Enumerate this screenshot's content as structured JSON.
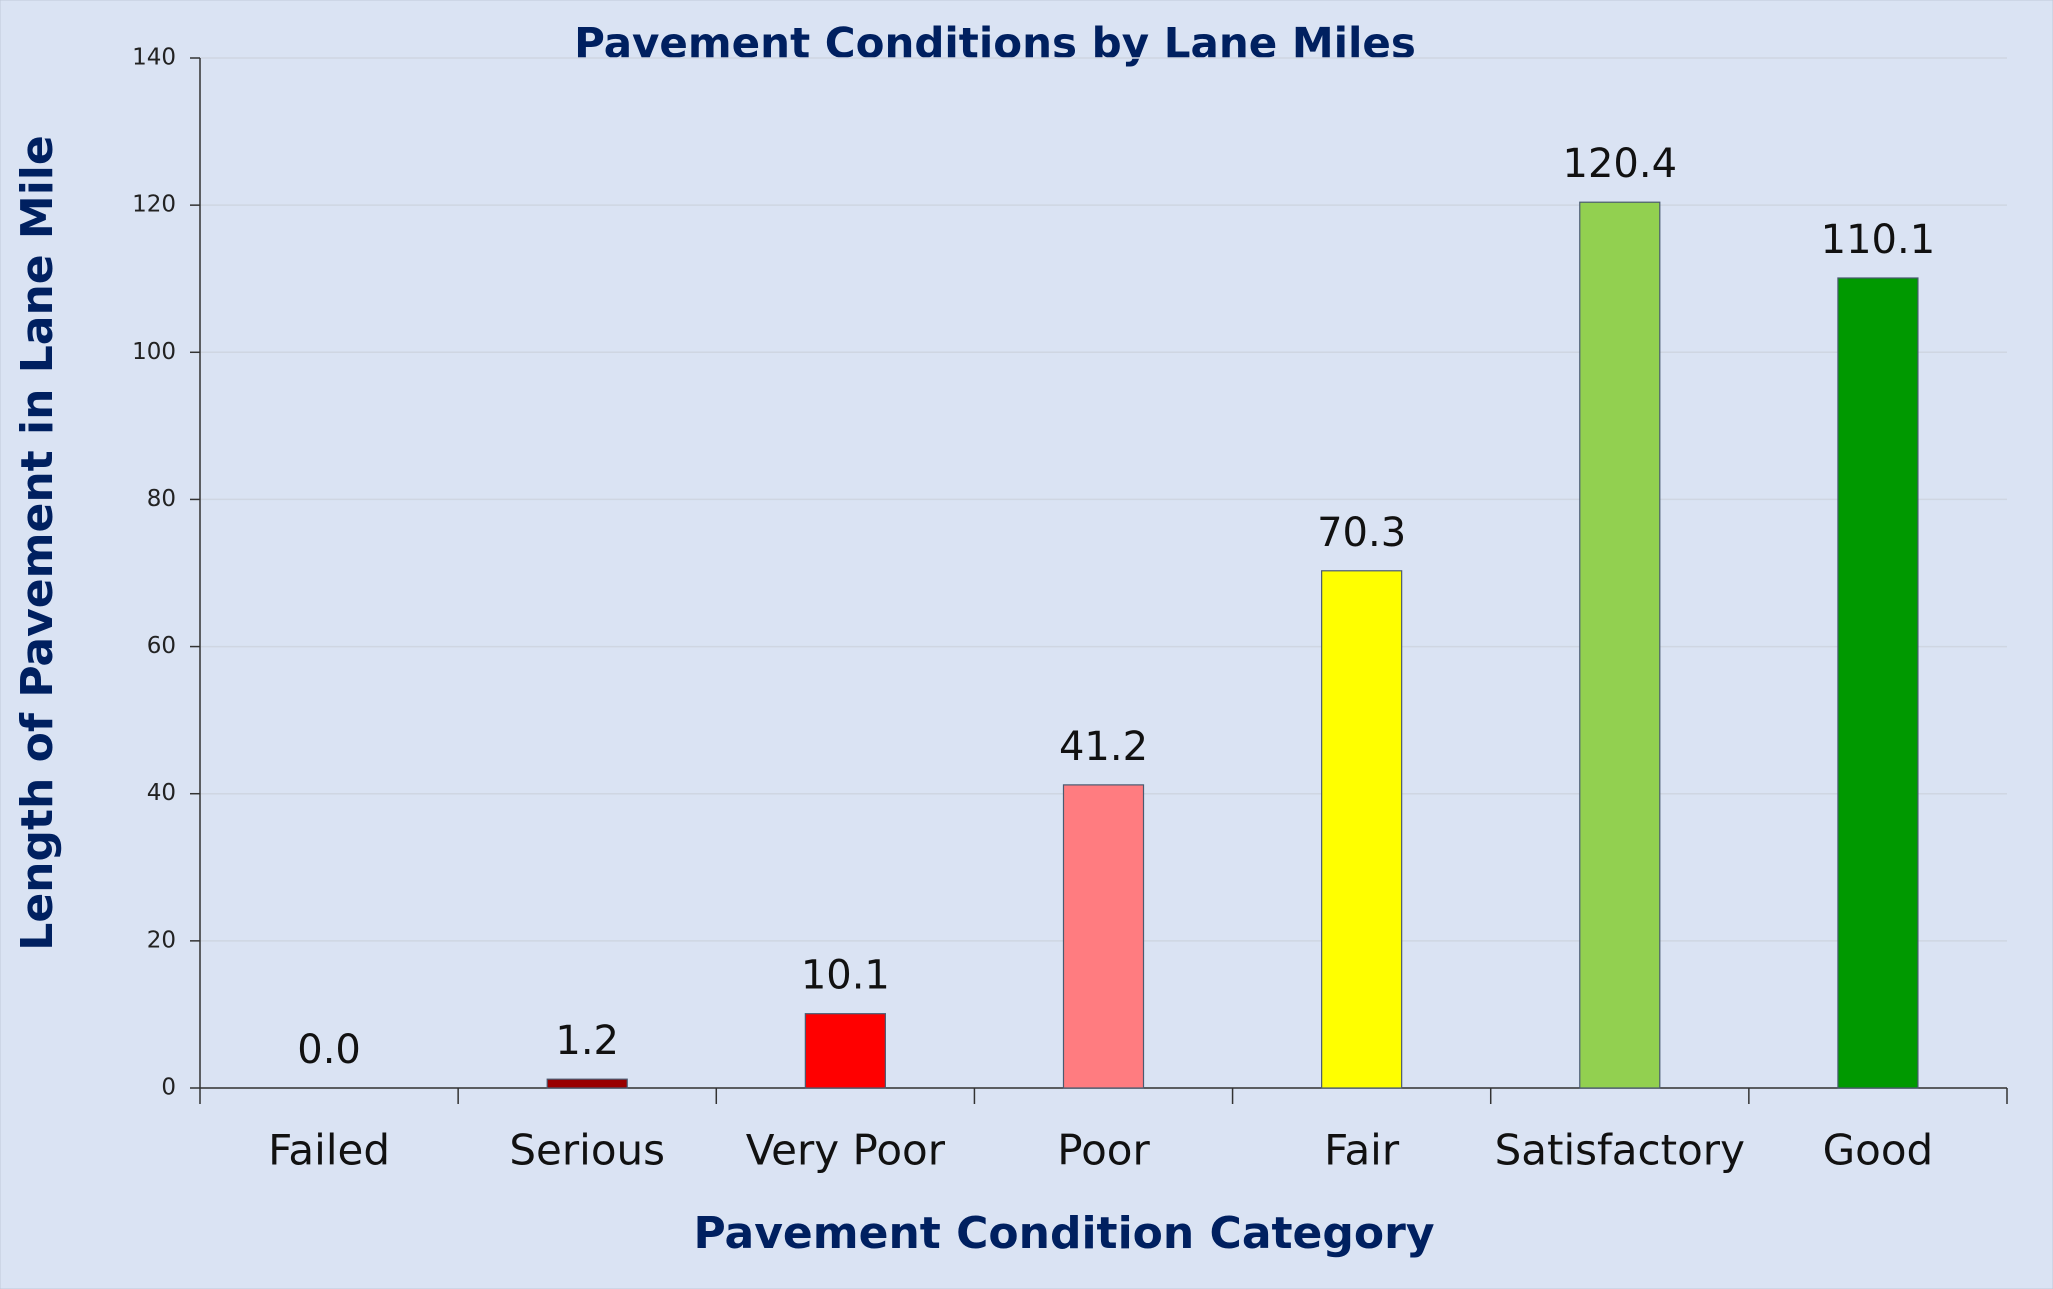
{
  "chart_data": {
    "type": "bar",
    "title": "Pavement Conditions by Lane Miles",
    "xlabel": "Pavement Condition Category",
    "ylabel": "Length of Pavement in Lane Mile",
    "categories": [
      "Failed",
      "Serious",
      "Very Poor",
      "Poor",
      "Fair",
      "Satisfactory",
      "Good"
    ],
    "values": [
      0,
      1.2,
      10.1,
      41.2,
      70.3,
      120.4,
      110.1
    ],
    "value_labels": [
      "0.0",
      "1.2",
      "10.1",
      "41.2",
      "70.3",
      "120.4",
      "110.1"
    ],
    "colors": [
      "#990000",
      "#990000",
      "#ff0000",
      "#ff7c80",
      "#ffff00",
      "#92d050",
      "#009900"
    ],
    "ylim": [
      0,
      140
    ],
    "yticks": [
      0,
      20,
      40,
      60,
      80,
      100,
      120,
      140
    ],
    "grid": true
  }
}
